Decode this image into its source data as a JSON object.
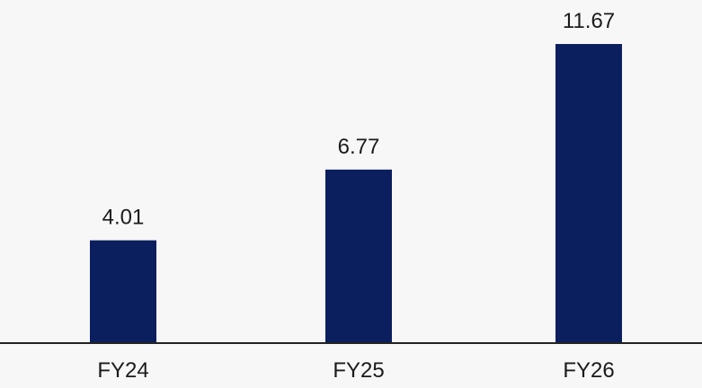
{
  "chart_data": {
    "type": "bar",
    "categories": [
      "FY24",
      "FY25",
      "FY26"
    ],
    "values": [
      4.01,
      6.77,
      11.67
    ],
    "data_labels": [
      "4.01",
      "6.77",
      "11.67"
    ],
    "title": "",
    "xlabel": "",
    "ylabel": "",
    "ylim": [
      0,
      11.67
    ],
    "grid": false,
    "legend": "none",
    "colors": {
      "bar": "#0b1f5e",
      "axis": "#222222",
      "text": "#1b1b1b",
      "background": "#f7f7f7"
    }
  }
}
